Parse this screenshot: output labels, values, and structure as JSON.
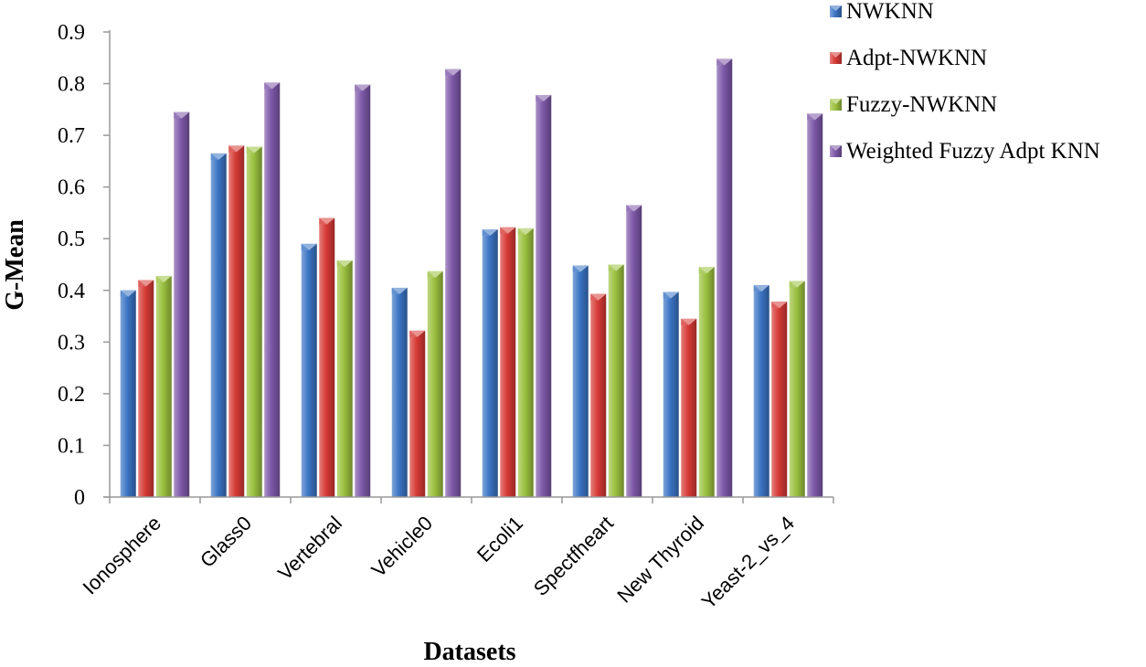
{
  "chart_data": {
    "type": "bar",
    "xlabel": "Datasets",
    "ylabel": "G-Mean",
    "ylim": [
      0,
      0.9
    ],
    "yticks": [
      "0",
      "0.1",
      "0.2",
      "0.3",
      "0.4",
      "0.5",
      "0.6",
      "0.7",
      "0.8",
      "0.9"
    ],
    "grid": false,
    "legend_position": "top-right",
    "categories": [
      "Ionosphere",
      "Glass0",
      "Vertebral",
      "Vehicle0",
      "Ecoli1",
      "Spectfheart",
      "New Thyroid",
      "Yeast-2_vs_4"
    ],
    "series": [
      {
        "name": "NWKNN",
        "color": "#3b74c4",
        "values": [
          0.4,
          0.665,
          0.49,
          0.405,
          0.518,
          0.448,
          0.397,
          0.41
        ]
      },
      {
        "name": "Adpt-NWKNN",
        "color": "#d63a36",
        "values": [
          0.42,
          0.68,
          0.54,
          0.322,
          0.522,
          0.393,
          0.345,
          0.378
        ]
      },
      {
        "name": "Fuzzy-NWKNN",
        "color": "#9bc13f",
        "values": [
          0.428,
          0.678,
          0.458,
          0.437,
          0.52,
          0.45,
          0.445,
          0.418
        ]
      },
      {
        "name": "Weighted Fuzzy Adpt KNN",
        "color": "#7d58a8",
        "values": [
          0.745,
          0.802,
          0.798,
          0.828,
          0.778,
          0.565,
          0.848,
          0.742
        ]
      }
    ]
  }
}
